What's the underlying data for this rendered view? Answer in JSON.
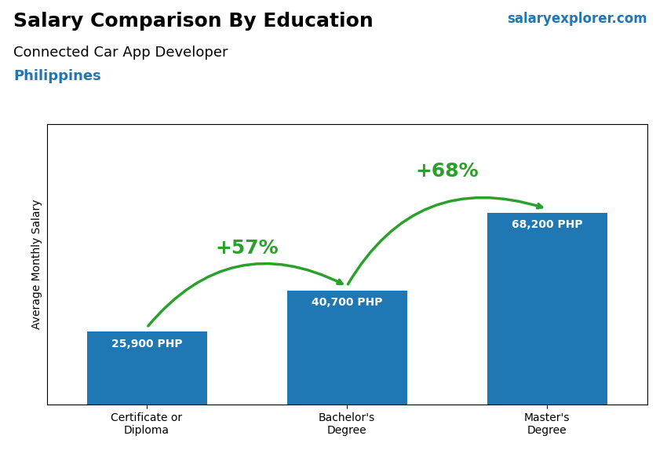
{
  "chart_data": {
    "type": "bar",
    "title": "Salary Comparison By Education",
    "subtitle": [
      "Connected Car App Developer",
      "Philippines"
    ],
    "y_label": "Average Monthly Salary",
    "categories": [
      "Certificate or\nDiploma",
      "Bachelor's\nDegree",
      "Master's\nDegree"
    ],
    "values": [
      25900,
      40700,
      68200
    ],
    "value_labels": [
      "25,900 PHP",
      "40,700 PHP",
      "68,200 PHP"
    ],
    "data_labels": true,
    "ylim": [
      0,
      100000
    ],
    "yticks": [],
    "tick_labels": "x",
    "grid": false,
    "annotations": [
      {
        "text": "salaryexplorer.com"
      },
      {
        "text": "+57%",
        "from": 0,
        "to": 1
      },
      {
        "text": "+68%",
        "from": 1,
        "to": 2
      }
    ]
  }
}
